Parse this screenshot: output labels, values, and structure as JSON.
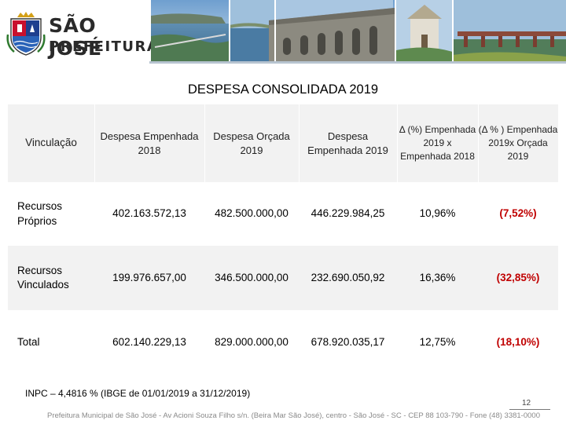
{
  "header": {
    "logo_line1": "SÃO JOSÉ",
    "logo_line2": "PREFEITURA"
  },
  "title": "DESPESA CONSOLIDADA 2019",
  "table": {
    "columns": [
      "Vinculação",
      "Despesa Empenhada 2018",
      "Despesa Orçada 2019",
      "Despesa Empenhada 2019",
      "Δ (%) Empenhada 2019 x Empenhada 2018",
      "(Δ % ) Empenhada 2019x Orçada 2019"
    ],
    "rows": [
      {
        "vinculacao": "Recursos Próprios",
        "empenhada_2018": "402.163.572,13",
        "orcada_2019": "482.500.000,00",
        "empenhada_2019": "446.229.984,25",
        "delta_emp": "10,96%",
        "delta_orc": "(7,52%)"
      },
      {
        "vinculacao": "Recursos Vinculados",
        "empenhada_2018": "199.976.657,00",
        "orcada_2019": "346.500.000,00",
        "empenhada_2019": "232.690.050,92",
        "delta_emp": "16,36%",
        "delta_orc": "(32,85%)"
      },
      {
        "vinculacao": "Total",
        "empenhada_2018": "602.140.229,13",
        "orcada_2019": "829.000.000,00",
        "empenhada_2019": "678.920.035,17",
        "delta_emp": "12,75%",
        "delta_orc": "(18,10%)"
      }
    ]
  },
  "footnote": "INPC – 4,4816 % (IBGE de 01/01/2019 a 31/12/2019)",
  "page_number": "12",
  "footer": "Prefeitura Municipal de São José - Av Acioni Souza Filho s/n. (Beira Mar São José), centro - São José - SC - CEP 88 103-790 - Fone (48) 3381-0000",
  "colors": {
    "negative": "#c00000",
    "row_shade": "#f2f2f2",
    "crest_red": "#c8102e",
    "crest_blue": "#1f3f8f"
  }
}
